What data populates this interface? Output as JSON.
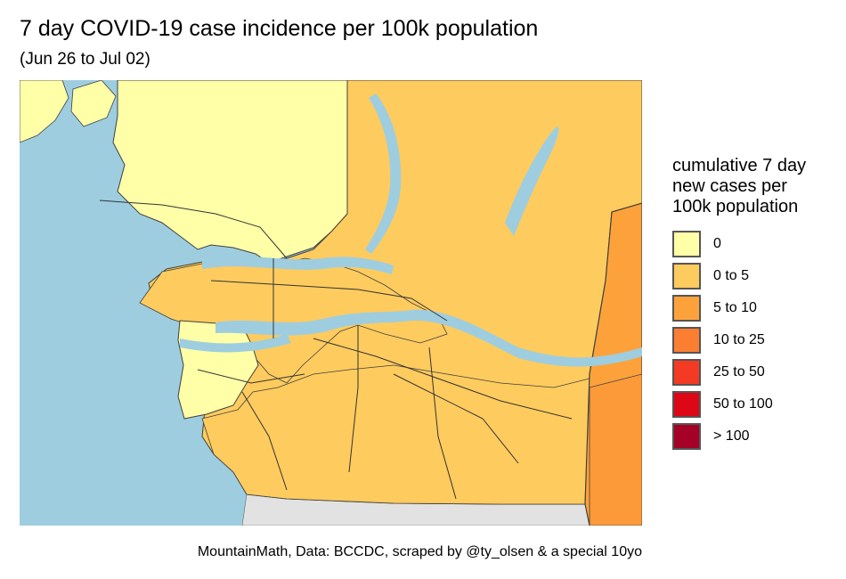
{
  "title": "7 day COVID-19 case incidence per 100k population",
  "subtitle": "(Jun 26 to Jul 02)",
  "caption": "MountainMath, Data: BCCDC, scraped by @ty_olsen & a special 10yo",
  "legend": {
    "title_lines": [
      "cumulative 7 day",
      "new cases per",
      "100k population"
    ],
    "items": [
      {
        "label": "0",
        "color": "#FFFFA8"
      },
      {
        "label": "0 to 5",
        "color": "#FECB5E"
      },
      {
        "label": "5 to 10",
        "color": "#FDA23B"
      },
      {
        "label": "10 to 25",
        "color": "#FC7E30"
      },
      {
        "label": "25 to 50",
        "color": "#F43A22"
      },
      {
        "label": "50 to 100",
        "color": "#DD0715"
      },
      {
        "label": "> 100",
        "color": "#A50026"
      }
    ]
  },
  "colors": {
    "water": "#9ECDE0",
    "land_outside": "#E2E2E2",
    "boundary": "#404040"
  }
}
